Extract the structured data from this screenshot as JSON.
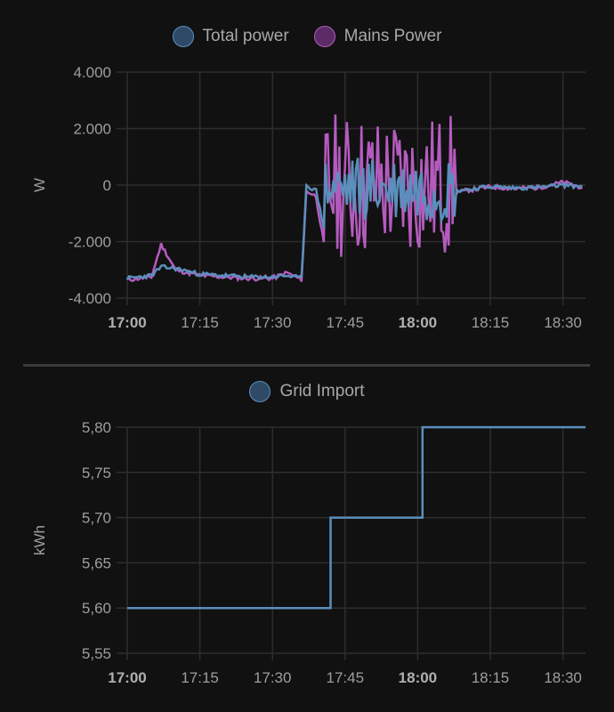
{
  "colors": {
    "background": "#111111",
    "grid": "#2e2e2e",
    "axis_text": "#9e9e9e",
    "total_power": "#5b8fbd",
    "total_power_fill": "#2f4a66",
    "mains_power": "#b55bbf",
    "mains_power_fill": "#5b2c66",
    "grid_import": "#5b8fbd",
    "grid_import_fill": "#2f4a66"
  },
  "chart_data": [
    {
      "type": "line",
      "title": "",
      "legend": [
        "Total power",
        "Mains Power"
      ],
      "legend_position": "top",
      "xlabel": "",
      "ylabel": "W",
      "ylim": [
        -4000,
        4000
      ],
      "yticks": [
        "4.000",
        "2.000",
        "0",
        "-2.000",
        "-4.000"
      ],
      "xticks": [
        "17:00",
        "17:15",
        "17:30",
        "17:45",
        "18:00",
        "18:15",
        "18:30"
      ],
      "xticks_bold": [
        "17:00",
        "18:00"
      ],
      "grid": true,
      "x": [
        "17:00",
        "17:05",
        "17:07",
        "17:10",
        "17:15",
        "17:20",
        "17:25",
        "17:30",
        "17:33",
        "17:36",
        "17:37",
        "17:39",
        "17:41",
        "17:43",
        "17:45",
        "17:48",
        "17:51",
        "17:54",
        "17:57",
        "18:00",
        "18:03",
        "18:06",
        "18:08",
        "18:15",
        "18:20",
        "18:25",
        "18:30",
        "18:34"
      ],
      "series": [
        {
          "name": "Total power",
          "values": [
            -3300,
            -3200,
            -2900,
            -2950,
            -3150,
            -3200,
            -3250,
            -3250,
            -3200,
            -3300,
            0,
            -200,
            -1800,
            300,
            -500,
            800,
            -1000,
            1400,
            -800,
            600,
            -1200,
            0,
            -200,
            -50,
            -100,
            -80,
            0,
            -50
          ]
        },
        {
          "name": "Mains Power",
          "values": [
            -3350,
            -3250,
            -2100,
            -3000,
            -3200,
            -3250,
            -3300,
            -3300,
            -3100,
            -3350,
            -200,
            -400,
            -2500,
            2300,
            -2600,
            2400,
            -2800,
            2200,
            -2700,
            2300,
            -3000,
            -100,
            -250,
            -60,
            -120,
            -90,
            100,
            -80
          ]
        }
      ]
    },
    {
      "type": "line",
      "step": true,
      "title": "",
      "legend": [
        "Grid Import"
      ],
      "legend_position": "top",
      "xlabel": "",
      "ylabel": "kWh",
      "ylim": [
        5.55,
        5.8
      ],
      "yticks": [
        "5,80",
        "5,75",
        "5,70",
        "5,65",
        "5,60",
        "5,55"
      ],
      "xticks": [
        "17:00",
        "17:15",
        "17:30",
        "17:45",
        "18:00",
        "18:15",
        "18:30"
      ],
      "xticks_bold": [
        "17:00",
        "18:00"
      ],
      "grid": true,
      "x": [
        "17:00",
        "17:42",
        "18:01",
        "18:35"
      ],
      "series": [
        {
          "name": "Grid Import",
          "values": [
            5.6,
            5.7,
            5.8,
            5.8
          ]
        }
      ]
    }
  ],
  "top_chart": {
    "legend": [
      {
        "label": "Total power"
      },
      {
        "label": "Mains Power"
      }
    ],
    "ylabel": "W"
  },
  "bottom_chart": {
    "legend": [
      {
        "label": "Grid Import"
      }
    ],
    "ylabel": "kWh"
  }
}
